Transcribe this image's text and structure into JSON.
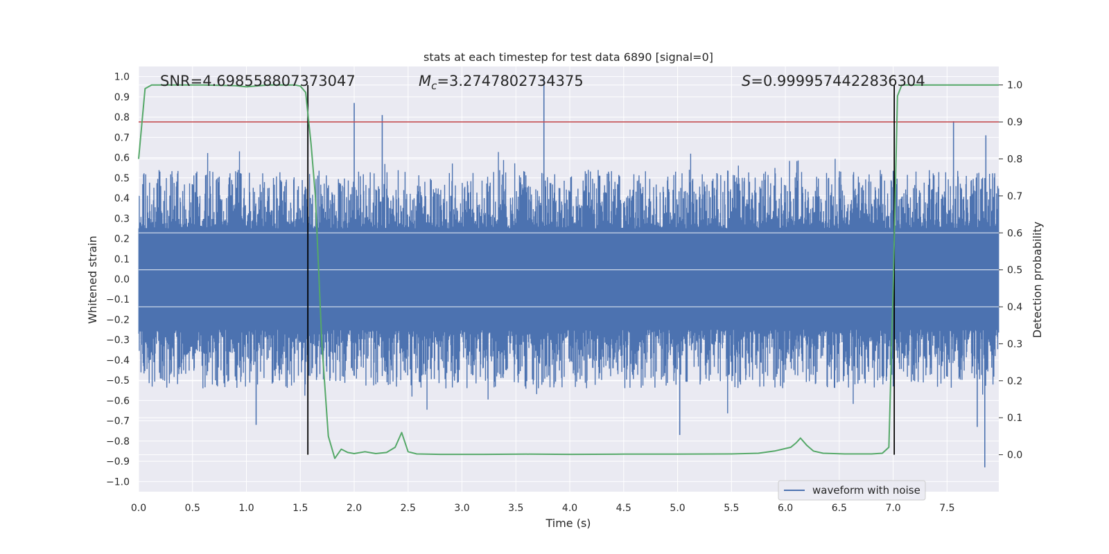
{
  "chart_data": {
    "type": "line",
    "title": "stats at each timestep for test data 6890 [signal=0]",
    "xlabel": "Time (s)",
    "ylabel_left": "Whitened strain",
    "ylabel_right": "Detection probability",
    "xlim": [
      0,
      7.98
    ],
    "ylim_left": [
      -1.05,
      1.05
    ],
    "ylim_right": [
      -0.1,
      1.05
    ],
    "x_ticks": [
      0,
      0.5,
      1,
      1.5,
      2,
      2.5,
      3,
      3.5,
      4,
      4.5,
      5,
      5.5,
      6,
      6.5,
      7,
      7.5
    ],
    "x_tick_labels": [
      "0.0",
      "0.5",
      "1.0",
      "1.5",
      "2.0",
      "2.5",
      "3.0",
      "3.5",
      "4.0",
      "4.5",
      "5.0",
      "5.5",
      "6.0",
      "6.5",
      "7.0",
      "7.5"
    ],
    "y_ticks_left": [
      -1,
      -0.9,
      -0.8,
      -0.7,
      -0.6,
      -0.5,
      -0.4,
      -0.3,
      -0.2,
      -0.1,
      0,
      0.1,
      0.2,
      0.3,
      0.4,
      0.5,
      0.6,
      0.7,
      0.8,
      0.9,
      1
    ],
    "y_tick_labels_left": [
      "−1.0",
      "−0.9",
      "−0.8",
      "−0.7",
      "−0.6",
      "−0.5",
      "−0.4",
      "−0.3",
      "−0.2",
      "−0.1",
      "0.0",
      "0.1",
      "0.2",
      "0.3",
      "0.4",
      "0.5",
      "0.6",
      "0.7",
      "0.8",
      "0.9",
      "1.0"
    ],
    "y_ticks_right": [
      0,
      0.1,
      0.2,
      0.3,
      0.4,
      0.5,
      0.6,
      0.7,
      0.8,
      0.9,
      1
    ],
    "y_tick_labels_right": [
      "0.0",
      "0.1",
      "0.2",
      "0.3",
      "0.4",
      "0.5",
      "0.6",
      "0.7",
      "0.8",
      "0.9",
      "1.0"
    ],
    "annotations": {
      "snr": "SNR=4.698558807373047",
      "mc_symbol": "M",
      "mc_sub": "c",
      "mc_value": "=3.2747802734375",
      "s_symbol": "S",
      "s_value": "=0.9999574422836304"
    },
    "legend": {
      "label": "waveform with noise",
      "placement": "bottom-right"
    },
    "threshold_line": {
      "axis": "right",
      "value": 0.9,
      "color": "#c44e52"
    },
    "vertical_lines": [
      1.57,
      7.01
    ],
    "colors": {
      "waveform": "#4c72b0",
      "probability": "#55a868",
      "background": "#eaeaf2",
      "grid": "#ffffff"
    },
    "waveform": {
      "n_samples": 2000,
      "band_amplitude": 0.25,
      "typical_peak": 0.42,
      "spikes": [
        {
          "t": 2.0,
          "v": 0.87
        },
        {
          "t": 2.26,
          "v": 0.81
        },
        {
          "t": 3.76,
          "v": 1.0
        },
        {
          "t": 1.09,
          "v": -0.72
        },
        {
          "t": 5.02,
          "v": -0.77
        },
        {
          "t": 7.56,
          "v": 0.78
        },
        {
          "t": 7.86,
          "v": 0.71
        },
        {
          "t": 7.85,
          "v": -0.93
        },
        {
          "t": 7.78,
          "v": -0.73
        }
      ]
    },
    "probability_series": {
      "name": "Detection probability",
      "x": [
        0,
        0.06,
        0.12,
        0.3,
        0.6,
        0.9,
        1.0,
        1.2,
        1.45,
        1.5,
        1.55,
        1.6,
        1.64,
        1.7,
        1.76,
        1.82,
        1.88,
        1.94,
        2.0,
        2.1,
        2.2,
        2.3,
        2.38,
        2.44,
        2.5,
        2.58,
        2.8,
        3.2,
        3.6,
        4.0,
        4.5,
        5.0,
        5.5,
        5.75,
        5.9,
        6.05,
        6.1,
        6.14,
        6.2,
        6.26,
        6.35,
        6.55,
        6.8,
        6.9,
        6.96,
        7.0,
        7.04,
        7.08,
        7.14,
        7.98
      ],
      "y": [
        0.8,
        0.99,
        1.0,
        1.0,
        1.0,
        0.998,
        0.995,
        1.0,
        1.0,
        0.997,
        0.98,
        0.84,
        0.7,
        0.3,
        0.05,
        -0.01,
        0.015,
        0.006,
        0.003,
        0.008,
        0.003,
        0.006,
        0.02,
        0.06,
        0.008,
        0.002,
        0.001,
        0.001,
        0.0015,
        0.001,
        0.0015,
        0.0015,
        0.002,
        0.004,
        0.01,
        0.02,
        0.032,
        0.045,
        0.025,
        0.01,
        0.004,
        0.002,
        0.002,
        0.004,
        0.02,
        0.45,
        0.97,
        1.0,
        1.0,
        1.0
      ]
    }
  }
}
